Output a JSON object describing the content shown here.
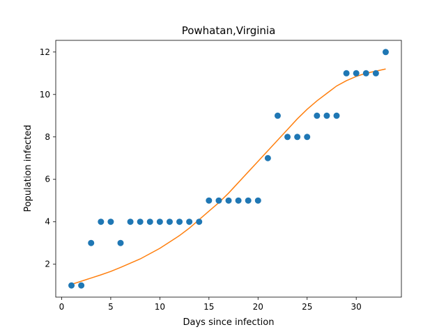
{
  "chart_data": {
    "type": "scatter",
    "title": "Powhatan,Virginia",
    "xlabel": "Days since infection",
    "ylabel": "Population infected",
    "xlim": [
      -0.6,
      34.6
    ],
    "ylim": [
      0.45,
      12.55
    ],
    "x_ticks": [
      0,
      5,
      10,
      15,
      20,
      25,
      30
    ],
    "y_ticks": [
      2,
      4,
      6,
      8,
      10,
      12
    ],
    "grid": false,
    "series": [
      {
        "kind": "scatter",
        "color": "#1f77b4",
        "x": [
          1,
          2,
          3,
          4,
          5,
          6,
          7,
          8,
          9,
          10,
          11,
          12,
          13,
          14,
          15,
          16,
          17,
          18,
          19,
          20,
          21,
          22,
          23,
          24,
          25,
          26,
          27,
          28,
          29,
          30,
          31,
          32,
          33
        ],
        "y": [
          1,
          1,
          3,
          4,
          4,
          3,
          4,
          4,
          4,
          4,
          4,
          4,
          4,
          4,
          5,
          5,
          5,
          5,
          5,
          5,
          7,
          9,
          8,
          8,
          8,
          9,
          9,
          9,
          11,
          11,
          11,
          11,
          12
        ]
      },
      {
        "kind": "line",
        "color": "#ff7f0e",
        "x": [
          1,
          2,
          3,
          4,
          5,
          6,
          7,
          8,
          9,
          10,
          11,
          12,
          13,
          14,
          15,
          16,
          17,
          18,
          19,
          20,
          21,
          22,
          23,
          24,
          25,
          26,
          27,
          28,
          29,
          30,
          31,
          32,
          33
        ],
        "y": [
          1.05,
          1.2,
          1.35,
          1.5,
          1.66,
          1.85,
          2.05,
          2.25,
          2.5,
          2.75,
          3.05,
          3.35,
          3.7,
          4.1,
          4.5,
          4.9,
          5.35,
          5.85,
          6.35,
          6.85,
          7.35,
          7.85,
          8.35,
          8.85,
          9.3,
          9.7,
          10.05,
          10.4,
          10.65,
          10.85,
          11.0,
          11.1,
          11.2
        ]
      }
    ]
  }
}
